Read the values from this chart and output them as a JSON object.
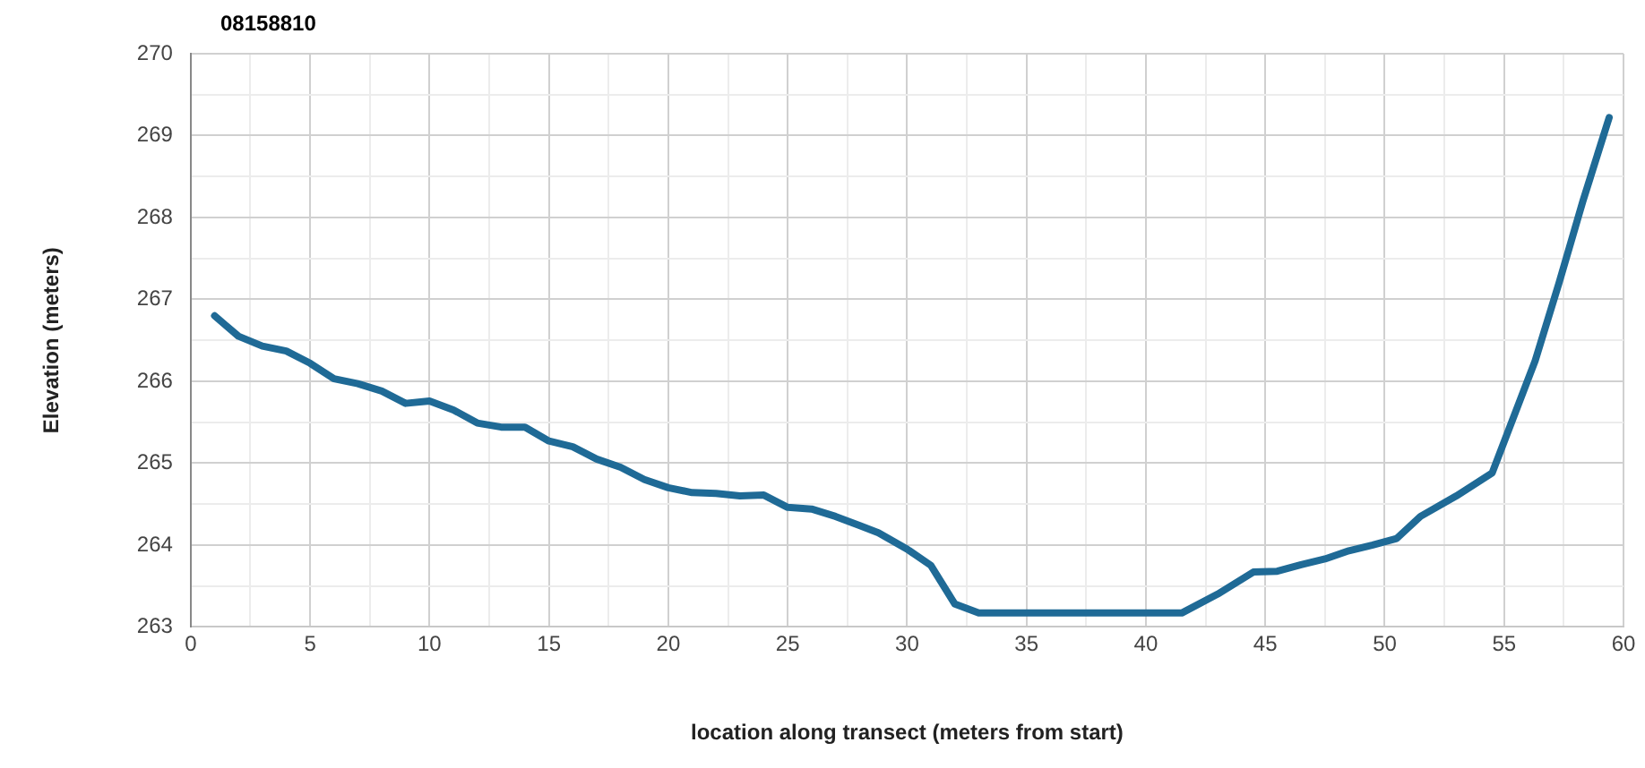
{
  "chart_data": {
    "type": "line",
    "title": "08158810",
    "xlabel": "location along transect (meters from start)",
    "ylabel": "Elevation (meters)",
    "x": [
      1,
      2,
      3,
      4,
      5,
      6,
      7,
      8,
      9,
      10,
      11,
      12,
      13,
      14,
      15,
      16,
      17,
      18,
      19,
      20,
      21,
      22,
      23,
      24,
      25,
      26,
      27,
      28,
      28.8,
      30,
      31,
      32,
      33,
      35,
      37,
      39,
      41.5,
      43,
      44.5,
      45.5,
      46.5,
      47.5,
      48.5,
      49.5,
      50.5,
      51.5,
      53,
      54.5,
      56.3,
      57.3,
      58.3,
      59.4
    ],
    "series": [
      {
        "color": "#1f6a96",
        "values": [
          266.8,
          266.55,
          266.43,
          266.37,
          266.22,
          266.03,
          265.97,
          265.88,
          265.73,
          265.76,
          265.65,
          265.49,
          265.44,
          265.44,
          265.27,
          265.2,
          265.05,
          264.95,
          264.8,
          264.7,
          264.64,
          264.63,
          264.6,
          264.61,
          264.46,
          264.44,
          264.35,
          264.24,
          264.15,
          263.95,
          263.75,
          263.28,
          263.17,
          263.17,
          263.17,
          263.17,
          263.17,
          263.4,
          263.67,
          263.68,
          263.76,
          263.83,
          263.93,
          264.0,
          264.08,
          264.35,
          264.6,
          264.88,
          266.25,
          267.2,
          268.2,
          269.22
        ]
      }
    ],
    "xlim": [
      0,
      60
    ],
    "xticks": [
      0,
      {
        "value": 2.5,
        "label": null
      },
      5,
      {
        "value": 7.5,
        "label": null
      },
      10,
      {
        "value": 12.5,
        "label": null
      },
      15,
      {
        "value": 17.5,
        "label": null
      },
      20,
      {
        "value": 22.5,
        "label": null
      },
      25,
      {
        "value": 27.5,
        "label": null
      },
      30,
      {
        "value": 32.5,
        "label": null
      },
      35,
      {
        "value": 37.5,
        "label": null
      },
      40,
      {
        "value": 42.5,
        "label": null
      },
      45,
      {
        "value": 47.5,
        "label": null
      },
      50,
      {
        "value": 52.5,
        "label": null
      },
      55,
      {
        "value": 57.5,
        "label": null
      },
      60
    ],
    "ylim": [
      263,
      270
    ],
    "yticks": [
      263,
      {
        "value": 263.5,
        "label": null
      },
      264,
      {
        "value": 264.5,
        "label": null
      },
      265,
      {
        "value": 265.5,
        "label": null
      },
      266,
      {
        "value": 266.5,
        "label": null
      },
      267,
      {
        "value": 267.5,
        "label": null
      },
      268,
      {
        "value": 268.5,
        "label": null
      },
      269,
      {
        "value": 269.5,
        "label": null
      },
      270
    ],
    "grid": true,
    "legend": false,
    "marker": "none",
    "line_style": "solid"
  }
}
